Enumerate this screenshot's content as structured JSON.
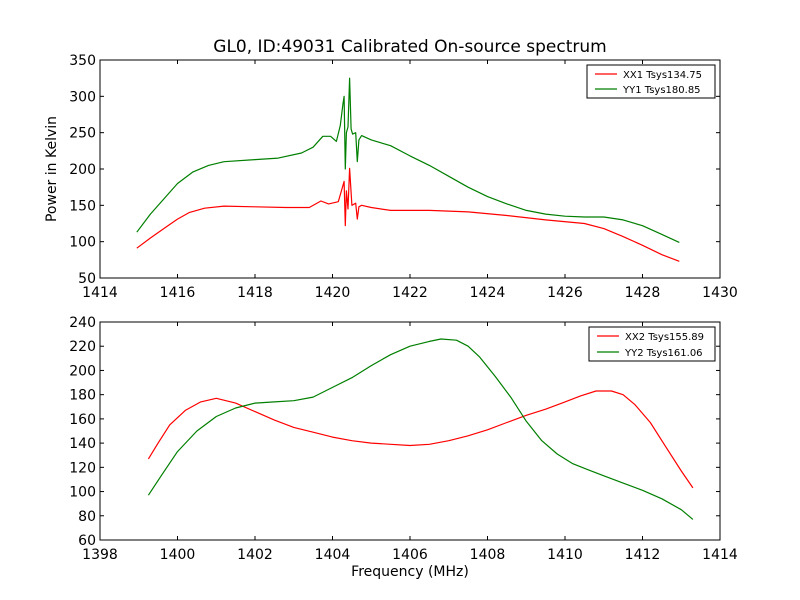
{
  "title": "GL0, ID:49031 Calibrated On-source spectrum",
  "colors": {
    "red": "#ff0000",
    "green": "#007f00"
  },
  "chart_data": [
    {
      "type": "line",
      "title": "GL0, ID:49031 Calibrated On-source spectrum",
      "xlabel": "",
      "ylabel": "Power in Kelvin",
      "xlim": [
        1414,
        1430
      ],
      "ylim": [
        50,
        350
      ],
      "xticks": [
        "1414",
        "1416",
        "1418",
        "1420",
        "1422",
        "1424",
        "1426",
        "1428",
        "1430"
      ],
      "yticks": [
        "50",
        "100",
        "150",
        "200",
        "250",
        "300",
        "350"
      ],
      "legend_position": "top-right",
      "grid": false,
      "series": [
        {
          "name": "XX1 Tsys134.75",
          "color": "#ff0000",
          "x": [
            1414.95,
            1415.3,
            1415.7,
            1416.0,
            1416.3,
            1416.7,
            1417.2,
            1418.0,
            1418.8,
            1419.4,
            1419.7,
            1419.9,
            1420.15,
            1420.3,
            1420.33,
            1420.36,
            1420.4,
            1420.44,
            1420.5,
            1420.6,
            1420.64,
            1420.68,
            1420.75,
            1421.0,
            1421.5,
            1422.5,
            1423.5,
            1424.5,
            1425.5,
            1426.5,
            1427.0,
            1427.5,
            1428.0,
            1428.5,
            1428.95
          ],
          "y": [
            91,
            105,
            120,
            131,
            140,
            146,
            149,
            148,
            147,
            147,
            156,
            152,
            155,
            183,
            122,
            170,
            145,
            201,
            150,
            153,
            131,
            148,
            150,
            147,
            143,
            143,
            141,
            136,
            130,
            125,
            118,
            107,
            95,
            82,
            73
          ]
        },
        {
          "name": "YY1 Tsys180.85",
          "color": "#007f00",
          "x": [
            1414.95,
            1415.3,
            1415.7,
            1416.0,
            1416.4,
            1416.8,
            1417.2,
            1418.0,
            1418.6,
            1419.2,
            1419.5,
            1419.75,
            1419.95,
            1420.1,
            1420.2,
            1420.27,
            1420.3,
            1420.33,
            1420.36,
            1420.4,
            1420.44,
            1420.48,
            1420.52,
            1420.6,
            1420.64,
            1420.68,
            1420.75,
            1421.0,
            1421.5,
            1422.0,
            1422.5,
            1423.0,
            1423.5,
            1424.0,
            1424.5,
            1425.0,
            1425.5,
            1426.0,
            1426.5,
            1427.0,
            1427.5,
            1428.0,
            1428.5,
            1428.95
          ],
          "y": [
            113,
            138,
            162,
            180,
            196,
            205,
            210,
            213,
            215,
            222,
            230,
            245,
            245,
            238,
            260,
            290,
            300,
            200,
            250,
            258,
            325,
            255,
            248,
            250,
            210,
            240,
            246,
            240,
            232,
            218,
            205,
            190,
            175,
            162,
            152,
            143,
            138,
            135,
            134,
            134,
            130,
            122,
            110,
            99
          ]
        }
      ]
    },
    {
      "type": "line",
      "title": "",
      "xlabel": "Frequency (MHz)",
      "ylabel": "",
      "xlim": [
        1398,
        1414
      ],
      "ylim": [
        60,
        240
      ],
      "xticks": [
        "1398",
        "1400",
        "1402",
        "1404",
        "1406",
        "1408",
        "1410",
        "1412",
        "1414"
      ],
      "yticks": [
        "60",
        "80",
        "100",
        "120",
        "140",
        "160",
        "180",
        "200",
        "220",
        "240"
      ],
      "legend_position": "top-right",
      "grid": false,
      "series": [
        {
          "name": "XX2 Tsys155.89",
          "color": "#ff0000",
          "x": [
            1399.25,
            1399.5,
            1399.8,
            1400.2,
            1400.6,
            1401.0,
            1401.5,
            1402.0,
            1402.5,
            1403.0,
            1403.5,
            1404.0,
            1404.5,
            1405.0,
            1405.5,
            1406.0,
            1406.5,
            1407.0,
            1407.5,
            1408.0,
            1408.5,
            1409.0,
            1409.5,
            1410.0,
            1410.4,
            1410.8,
            1411.2,
            1411.5,
            1411.8,
            1412.2,
            1412.6,
            1413.0,
            1413.3
          ],
          "y": [
            127,
            140,
            155,
            167,
            174,
            177,
            173,
            166,
            159,
            153,
            149,
            145,
            142,
            140,
            139,
            138,
            139,
            142,
            146,
            151,
            157,
            163,
            168,
            174,
            179,
            183,
            183,
            180,
            172,
            157,
            137,
            117,
            103
          ]
        },
        {
          "name": "YY2 Tsys161.06",
          "color": "#007f00",
          "x": [
            1399.25,
            1399.6,
            1400.0,
            1400.5,
            1401.0,
            1401.5,
            1402.0,
            1402.5,
            1403.0,
            1403.5,
            1404.0,
            1404.5,
            1405.0,
            1405.5,
            1406.0,
            1406.5,
            1406.8,
            1407.2,
            1407.5,
            1407.8,
            1408.2,
            1408.6,
            1409.0,
            1409.4,
            1409.8,
            1410.2,
            1410.6,
            1411.0,
            1411.5,
            1412.0,
            1412.5,
            1413.0,
            1413.3
          ],
          "y": [
            97,
            114,
            133,
            150,
            162,
            169,
            173,
            174,
            175,
            178,
            186,
            194,
            204,
            213,
            220,
            224,
            226,
            225,
            220,
            211,
            195,
            178,
            158,
            142,
            131,
            123,
            118,
            113,
            107,
            101,
            94,
            85,
            77
          ]
        }
      ]
    }
  ]
}
